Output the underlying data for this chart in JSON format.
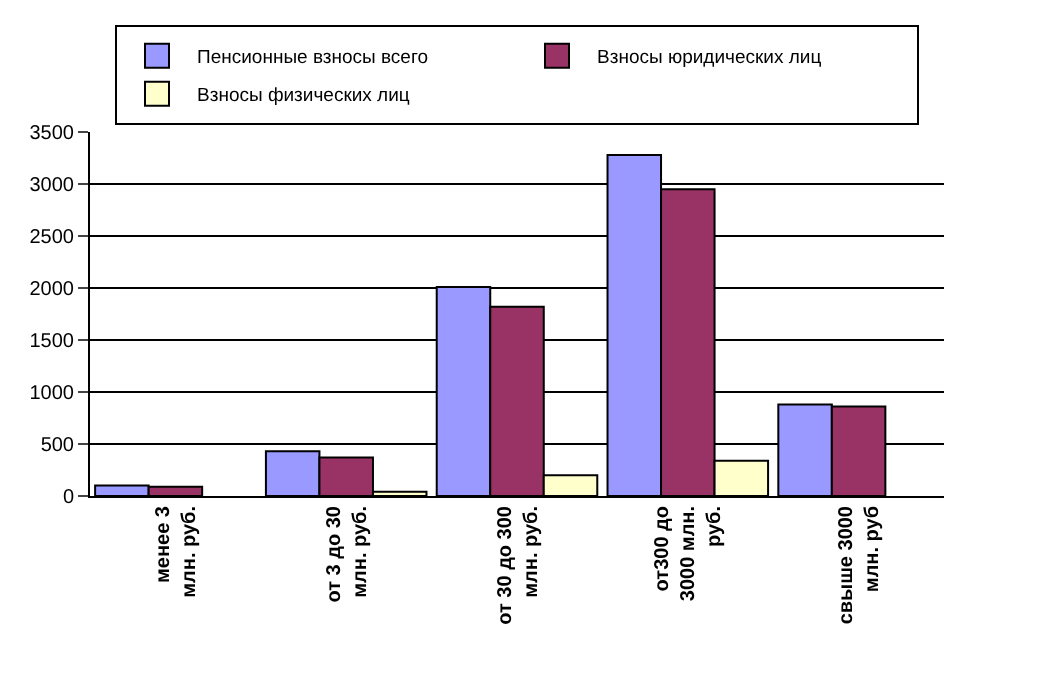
{
  "chart_data": {
    "type": "bar",
    "categories": [
      "менее 3\nмлн. руб.",
      "от 3 до 30\nмлн. руб.",
      "от 30 до 300\nмлн. руб.",
      "от300 до\n3000 млн.\nруб.",
      "свыше 3000\nмлн. руб"
    ],
    "series": [
      {
        "name": "Пенсионные взносы всего",
        "color": "#9999ff",
        "values": [
          100,
          430,
          2010,
          3280,
          880
        ]
      },
      {
        "name": "Взносы юридических лиц",
        "color": "#993366",
        "values": [
          90,
          370,
          1820,
          2950,
          860
        ]
      },
      {
        "name": "Взносы физических лиц",
        "color": "#ffffcc",
        "values": [
          null,
          40,
          200,
          340,
          null
        ]
      }
    ],
    "ylim": [
      0,
      3500
    ],
    "yticks": [
      0,
      500,
      1000,
      1500,
      2000,
      2500,
      3000,
      3500
    ],
    "grid": "y",
    "legend": "top"
  }
}
